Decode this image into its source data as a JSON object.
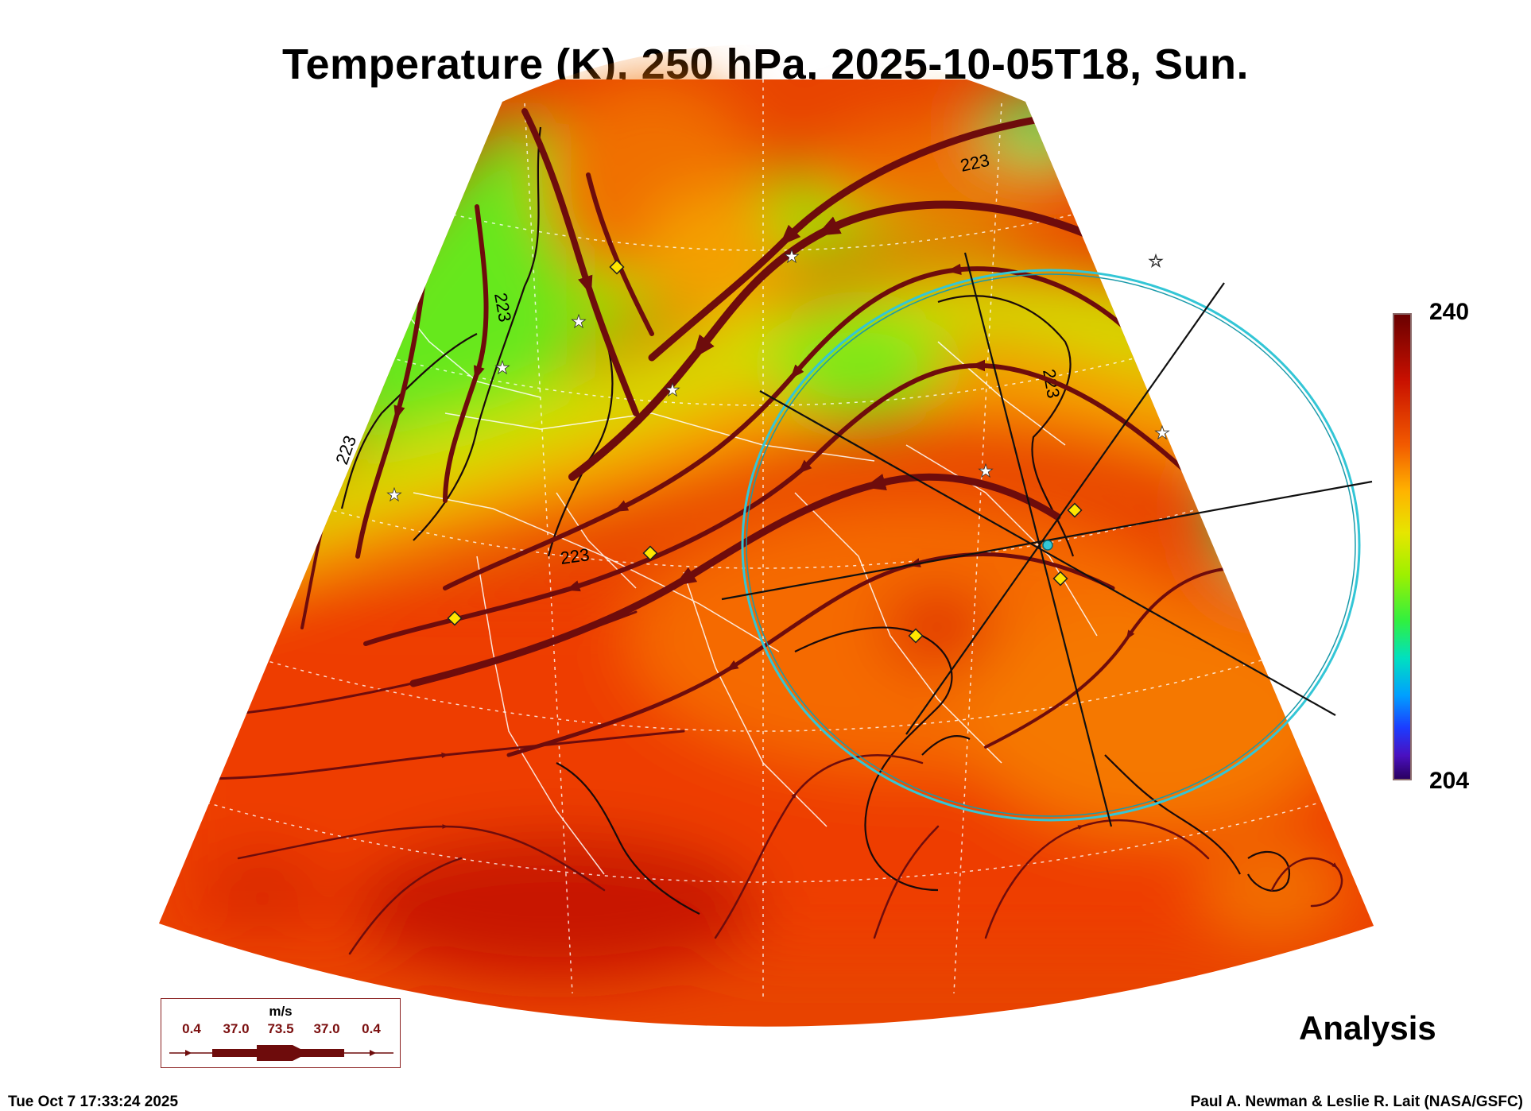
{
  "header": {
    "title": "Temperature (K), 250 hPa, 2025-10-05T18, Sun."
  },
  "map": {
    "projection": "polar-stereographic-sector",
    "field": "temperature",
    "contour_labels": [
      "223",
      "223",
      "223",
      "223",
      "223"
    ],
    "overlay_ring_color": "#33c6d6",
    "streamline_color": "#6e0c0c",
    "station_markers": [
      "yellow-diamond",
      "white-star"
    ]
  },
  "colorbar": {
    "max_label": "240",
    "min_label": "204",
    "colors": [
      "#6a0000",
      "#f25a00",
      "#ffb300",
      "#e6e600",
      "#30f040",
      "#00a0ff",
      "#2a0060"
    ]
  },
  "wind_legend": {
    "units": "m/s",
    "values": [
      "0.4",
      "37.0",
      "73.5",
      "37.0",
      "0.4"
    ]
  },
  "stamp": {
    "label": "Analysis"
  },
  "footer": {
    "timestamp": "Tue Oct  7 17:33:24 2025",
    "credit": "Paul A. Newman & Leslie R. Lait (NASA/GSFC)"
  }
}
